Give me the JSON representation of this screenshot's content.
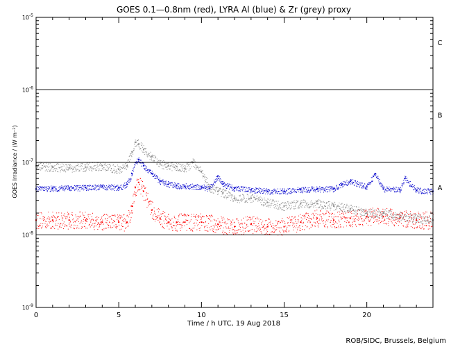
{
  "chart_data": {
    "type": "scatter",
    "title": "GOES 0.1—0.8nm (red), LYRA Al (blue) & Zr (grey) proxy",
    "xlabel": "Time / h UTC, 19 Aug 2018",
    "ylabel": "GOES Irradiance / (W m⁻²)",
    "credit": "ROB/SIDC, Brussels, Belgium",
    "xlim": [
      0,
      24
    ],
    "ylim": [
      1e-09,
      1e-05
    ],
    "yscale": "log",
    "x_ticks": [
      0,
      5,
      10,
      15,
      20
    ],
    "y_tick_labels": [
      {
        "value": 1e-05,
        "base": "10",
        "exp": "-5"
      },
      {
        "value": 1e-06,
        "base": "10",
        "exp": "-6"
      },
      {
        "value": 1e-07,
        "base": "10",
        "exp": "-7"
      },
      {
        "value": 1e-08,
        "base": "10",
        "exp": "-8"
      },
      {
        "value": 1e-09,
        "base": "10",
        "exp": "-9"
      }
    ],
    "class_lines": [
      1e-06,
      1e-07,
      1e-08
    ],
    "class_labels": [
      {
        "label": "C",
        "value": 4.5e-06
      },
      {
        "label": "B",
        "value": 4.5e-07
      },
      {
        "label": "A",
        "value": 4.5e-08
      }
    ],
    "series": [
      {
        "color": "#ff0000",
        "x": [
          0,
          1,
          2,
          3,
          4,
          5,
          5.5,
          5.8,
          6.0,
          6.2,
          6.5,
          7,
          7.5,
          8,
          8.5,
          9,
          10,
          11,
          12,
          13,
          14,
          15,
          16,
          17,
          18,
          19,
          20,
          21,
          22,
          23,
          24
        ],
        "y": [
          1.6e-08,
          1.6e-08,
          1.6e-08,
          1.6e-08,
          1.5e-08,
          1.5e-08,
          1.5e-08,
          2.5e-08,
          4.5e-08,
          5.3e-08,
          4e-08,
          2.2e-08,
          1.7e-08,
          1.5e-08,
          1.5e-08,
          1.5e-08,
          1.5e-08,
          1.4e-08,
          1.3e-08,
          1.4e-08,
          1.3e-08,
          1.3e-08,
          1.5e-08,
          1.7e-08,
          1.6e-08,
          1.7e-08,
          1.8e-08,
          1.8e-08,
          1.7e-08,
          1.6e-08,
          1.6e-08
        ]
      },
      {
        "color": "#0000cc",
        "x": [
          0,
          1,
          2,
          3,
          4,
          5,
          5.5,
          5.8,
          6.0,
          6.2,
          6.5,
          7,
          7.5,
          8,
          8.5,
          9,
          10,
          10.5,
          11,
          11.3,
          12,
          13,
          14,
          15,
          16,
          17,
          18,
          18.5,
          19,
          20,
          20.5,
          21,
          22,
          22.3,
          23,
          24
        ],
        "y": [
          4.3e-08,
          4.4e-08,
          4.4e-08,
          4.5e-08,
          4.6e-08,
          4.5e-08,
          5e-08,
          7e-08,
          1e-07,
          1.1e-07,
          9e-08,
          7e-08,
          5.5e-08,
          5e-08,
          4.8e-08,
          4.7e-08,
          4.6e-08,
          4.4e-08,
          6.5e-08,
          5e-08,
          4.4e-08,
          4.2e-08,
          4e-08,
          4e-08,
          4.2e-08,
          4.3e-08,
          4.3e-08,
          5e-08,
          5.5e-08,
          4.6e-08,
          7e-08,
          4.3e-08,
          4.2e-08,
          6e-08,
          4.1e-08,
          4e-08
        ]
      },
      {
        "color": "#8c8c8c",
        "x": [
          0,
          1,
          2,
          3,
          4,
          5,
          5.5,
          5.8,
          6.0,
          6.2,
          6.5,
          7,
          7.5,
          8,
          8.5,
          9,
          9.5,
          10,
          10.5,
          11,
          11.3,
          12,
          13,
          14,
          15,
          16,
          17,
          18,
          19,
          20,
          21,
          22,
          23,
          24
        ],
        "y": [
          9e-08,
          8.6e-08,
          8.4e-08,
          8.6e-08,
          9e-08,
          8e-08,
          9e-08,
          1.4e-07,
          1.9e-07,
          1.8e-07,
          1.5e-07,
          1.2e-07,
          9.5e-08,
          9e-08,
          8.8e-08,
          8.3e-08,
          1e-07,
          7.5e-08,
          4.5e-08,
          4e-08,
          3.8e-08,
          3.2e-08,
          3.2e-08,
          2.8e-08,
          2.5e-08,
          2.7e-08,
          2.7e-08,
          2.5e-08,
          2.3e-08,
          2e-08,
          2e-08,
          1.8e-08,
          1.7e-08,
          1.6e-08
        ]
      }
    ]
  }
}
